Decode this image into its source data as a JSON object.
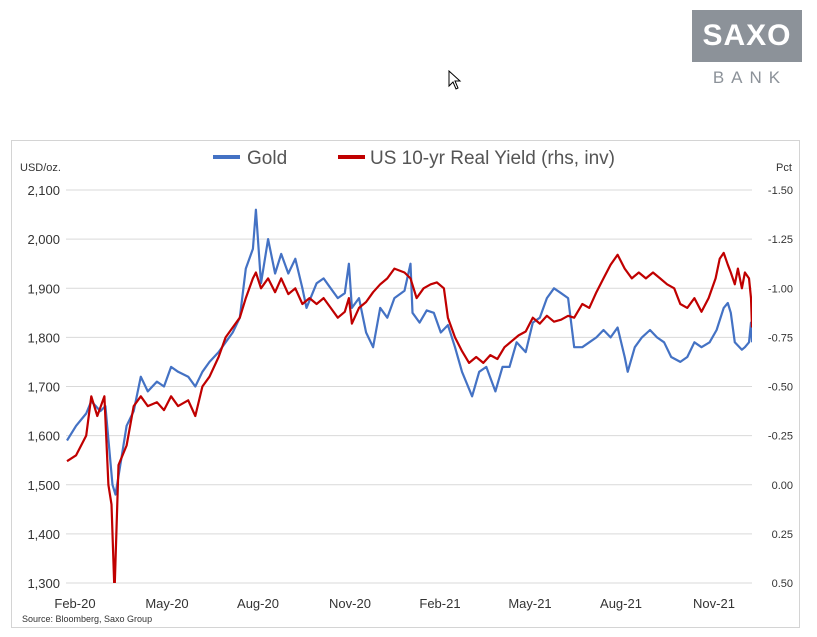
{
  "logo": {
    "top": "SAXO",
    "bottom": "BANK"
  },
  "colors": {
    "gold": "#4472C4",
    "yield": "#C00000",
    "grid": "#d9d9d9",
    "logo": "#8c9299"
  },
  "chart_data": {
    "type": "line",
    "left_axis_unit": "USD/oz.",
    "right_axis_unit": "Pct",
    "source": "Source: Bloomberg, Saxo Group",
    "x_ticks": [
      "Feb-20",
      "May-20",
      "Aug-20",
      "Nov-20",
      "Feb-21",
      "May-21",
      "Aug-21",
      "Nov-21"
    ],
    "y_left_ticks": [
      "2,100",
      "2,000",
      "1,900",
      "1,800",
      "1,700",
      "1,600",
      "1,500",
      "1,400",
      "1,300"
    ],
    "y_right_ticks": [
      "-1.50",
      "-1.25",
      "-1.00",
      "-0.75",
      "-0.50",
      "-0.25",
      "0.00",
      "0.25",
      "0.50"
    ],
    "y_left_range": [
      1300,
      2100
    ],
    "y_right_range": [
      -1.5,
      0.5
    ],
    "y_right_inverted": true,
    "x_range": [
      "2020-01-31",
      "2021-12-10"
    ],
    "series": [
      {
        "name": "Gold",
        "axis": "left",
        "points": [
          [
            "2020-02-01",
            1590
          ],
          [
            "2020-02-10",
            1620
          ],
          [
            "2020-02-20",
            1645
          ],
          [
            "2020-02-25",
            1670
          ],
          [
            "2020-03-05",
            1650
          ],
          [
            "2020-03-10",
            1660
          ],
          [
            "2020-03-17",
            1500
          ],
          [
            "2020-03-20",
            1480
          ],
          [
            "2020-03-24",
            1530
          ],
          [
            "2020-03-31",
            1620
          ],
          [
            "2020-04-07",
            1650
          ],
          [
            "2020-04-14",
            1720
          ],
          [
            "2020-04-21",
            1690
          ],
          [
            "2020-04-30",
            1710
          ],
          [
            "2020-05-07",
            1700
          ],
          [
            "2020-05-14",
            1740
          ],
          [
            "2020-05-21",
            1730
          ],
          [
            "2020-05-31",
            1720
          ],
          [
            "2020-06-07",
            1700
          ],
          [
            "2020-06-14",
            1730
          ],
          [
            "2020-06-21",
            1750
          ],
          [
            "2020-06-30",
            1770
          ],
          [
            "2020-07-07",
            1790
          ],
          [
            "2020-07-14",
            1810
          ],
          [
            "2020-07-21",
            1840
          ],
          [
            "2020-07-27",
            1940
          ],
          [
            "2020-08-03",
            1980
          ],
          [
            "2020-08-06",
            2060
          ],
          [
            "2020-08-11",
            1910
          ],
          [
            "2020-08-18",
            2000
          ],
          [
            "2020-08-25",
            1930
          ],
          [
            "2020-08-31",
            1970
          ],
          [
            "2020-09-07",
            1930
          ],
          [
            "2020-09-14",
            1960
          ],
          [
            "2020-09-21",
            1900
          ],
          [
            "2020-09-25",
            1860
          ],
          [
            "2020-10-05",
            1910
          ],
          [
            "2020-10-12",
            1920
          ],
          [
            "2020-10-19",
            1900
          ],
          [
            "2020-10-26",
            1880
          ],
          [
            "2020-11-02",
            1890
          ],
          [
            "2020-11-06",
            1950
          ],
          [
            "2020-11-09",
            1860
          ],
          [
            "2020-11-16",
            1880
          ],
          [
            "2020-11-23",
            1810
          ],
          [
            "2020-11-30",
            1780
          ],
          [
            "2020-12-07",
            1860
          ],
          [
            "2020-12-14",
            1840
          ],
          [
            "2020-12-21",
            1880
          ],
          [
            "2020-12-31",
            1895
          ],
          [
            "2021-01-06",
            1950
          ],
          [
            "2021-01-08",
            1850
          ],
          [
            "2021-01-15",
            1830
          ],
          [
            "2021-01-22",
            1855
          ],
          [
            "2021-01-29",
            1850
          ],
          [
            "2021-02-05",
            1810
          ],
          [
            "2021-02-12",
            1825
          ],
          [
            "2021-02-19",
            1780
          ],
          [
            "2021-02-26",
            1730
          ],
          [
            "2021-03-08",
            1680
          ],
          [
            "2021-03-15",
            1730
          ],
          [
            "2021-03-22",
            1740
          ],
          [
            "2021-03-31",
            1690
          ],
          [
            "2021-04-07",
            1740
          ],
          [
            "2021-04-14",
            1740
          ],
          [
            "2021-04-21",
            1790
          ],
          [
            "2021-04-30",
            1770
          ],
          [
            "2021-05-07",
            1830
          ],
          [
            "2021-05-14",
            1840
          ],
          [
            "2021-05-21",
            1880
          ],
          [
            "2021-05-28",
            1900
          ],
          [
            "2021-06-04",
            1890
          ],
          [
            "2021-06-11",
            1880
          ],
          [
            "2021-06-17",
            1780
          ],
          [
            "2021-06-25",
            1780
          ],
          [
            "2021-07-02",
            1790
          ],
          [
            "2021-07-09",
            1800
          ],
          [
            "2021-07-16",
            1815
          ],
          [
            "2021-07-23",
            1800
          ],
          [
            "2021-07-30",
            1820
          ],
          [
            "2021-08-06",
            1760
          ],
          [
            "2021-08-09",
            1730
          ],
          [
            "2021-08-16",
            1780
          ],
          [
            "2021-08-23",
            1800
          ],
          [
            "2021-08-31",
            1815
          ],
          [
            "2021-09-07",
            1800
          ],
          [
            "2021-09-14",
            1790
          ],
          [
            "2021-09-21",
            1760
          ],
          [
            "2021-09-30",
            1750
          ],
          [
            "2021-10-07",
            1760
          ],
          [
            "2021-10-14",
            1790
          ],
          [
            "2021-10-21",
            1780
          ],
          [
            "2021-10-29",
            1790
          ],
          [
            "2021-11-05",
            1815
          ],
          [
            "2021-11-12",
            1860
          ],
          [
            "2021-11-16",
            1870
          ],
          [
            "2021-11-19",
            1850
          ],
          [
            "2021-11-23",
            1790
          ],
          [
            "2021-11-30",
            1775
          ],
          [
            "2021-12-03",
            1780
          ],
          [
            "2021-12-07",
            1790
          ],
          [
            "2021-12-09",
            1830
          ],
          [
            "2021-12-10",
            1790
          ]
        ]
      },
      {
        "name": "US 10-yr Real Yield (rhs, inv)",
        "axis": "right",
        "points": [
          [
            "2020-02-01",
            -0.12
          ],
          [
            "2020-02-10",
            -0.15
          ],
          [
            "2020-02-20",
            -0.25
          ],
          [
            "2020-02-25",
            -0.45
          ],
          [
            "2020-03-02",
            -0.35
          ],
          [
            "2020-03-09",
            -0.45
          ],
          [
            "2020-03-13",
            0.0
          ],
          [
            "2020-03-16",
            0.1
          ],
          [
            "2020-03-19",
            0.55
          ],
          [
            "2020-03-23",
            -0.1
          ],
          [
            "2020-03-31",
            -0.2
          ],
          [
            "2020-04-07",
            -0.4
          ],
          [
            "2020-04-14",
            -0.45
          ],
          [
            "2020-04-21",
            -0.4
          ],
          [
            "2020-04-30",
            -0.42
          ],
          [
            "2020-05-07",
            -0.38
          ],
          [
            "2020-05-14",
            -0.45
          ],
          [
            "2020-05-21",
            -0.4
          ],
          [
            "2020-05-31",
            -0.43
          ],
          [
            "2020-06-07",
            -0.35
          ],
          [
            "2020-06-14",
            -0.5
          ],
          [
            "2020-06-21",
            -0.55
          ],
          [
            "2020-06-30",
            -0.65
          ],
          [
            "2020-07-07",
            -0.75
          ],
          [
            "2020-07-14",
            -0.8
          ],
          [
            "2020-07-21",
            -0.85
          ],
          [
            "2020-07-27",
            -0.95
          ],
          [
            "2020-08-03",
            -1.05
          ],
          [
            "2020-08-06",
            -1.08
          ],
          [
            "2020-08-11",
            -1.0
          ],
          [
            "2020-08-18",
            -1.05
          ],
          [
            "2020-08-25",
            -0.98
          ],
          [
            "2020-08-31",
            -1.05
          ],
          [
            "2020-09-07",
            -0.97
          ],
          [
            "2020-09-14",
            -1.0
          ],
          [
            "2020-09-21",
            -0.92
          ],
          [
            "2020-09-28",
            -0.95
          ],
          [
            "2020-10-05",
            -0.92
          ],
          [
            "2020-10-12",
            -0.95
          ],
          [
            "2020-10-19",
            -0.9
          ],
          [
            "2020-10-26",
            -0.85
          ],
          [
            "2020-11-02",
            -0.88
          ],
          [
            "2020-11-06",
            -0.95
          ],
          [
            "2020-11-09",
            -0.82
          ],
          [
            "2020-11-16",
            -0.9
          ],
          [
            "2020-11-23",
            -0.93
          ],
          [
            "2020-11-30",
            -0.98
          ],
          [
            "2020-12-07",
            -1.02
          ],
          [
            "2020-12-14",
            -1.05
          ],
          [
            "2020-12-21",
            -1.1
          ],
          [
            "2020-12-31",
            -1.08
          ],
          [
            "2021-01-06",
            -1.05
          ],
          [
            "2021-01-12",
            -0.95
          ],
          [
            "2021-01-19",
            -1.0
          ],
          [
            "2021-01-26",
            -1.02
          ],
          [
            "2021-02-01",
            -1.03
          ],
          [
            "2021-02-08",
            -1.0
          ],
          [
            "2021-02-12",
            -0.85
          ],
          [
            "2021-02-19",
            -0.75
          ],
          [
            "2021-02-26",
            -0.68
          ],
          [
            "2021-03-05",
            -0.62
          ],
          [
            "2021-03-12",
            -0.65
          ],
          [
            "2021-03-19",
            -0.62
          ],
          [
            "2021-03-26",
            -0.66
          ],
          [
            "2021-04-02",
            -0.64
          ],
          [
            "2021-04-09",
            -0.7
          ],
          [
            "2021-04-16",
            -0.73
          ],
          [
            "2021-04-23",
            -0.76
          ],
          [
            "2021-04-30",
            -0.78
          ],
          [
            "2021-05-07",
            -0.85
          ],
          [
            "2021-05-14",
            -0.82
          ],
          [
            "2021-05-21",
            -0.86
          ],
          [
            "2021-05-28",
            -0.83
          ],
          [
            "2021-06-04",
            -0.84
          ],
          [
            "2021-06-11",
            -0.86
          ],
          [
            "2021-06-17",
            -0.85
          ],
          [
            "2021-06-25",
            -0.92
          ],
          [
            "2021-07-02",
            -0.9
          ],
          [
            "2021-07-09",
            -0.98
          ],
          [
            "2021-07-16",
            -1.05
          ],
          [
            "2021-07-23",
            -1.12
          ],
          [
            "2021-07-30",
            -1.17
          ],
          [
            "2021-08-06",
            -1.1
          ],
          [
            "2021-08-13",
            -1.05
          ],
          [
            "2021-08-20",
            -1.08
          ],
          [
            "2021-08-27",
            -1.05
          ],
          [
            "2021-09-03",
            -1.08
          ],
          [
            "2021-09-10",
            -1.05
          ],
          [
            "2021-09-17",
            -1.02
          ],
          [
            "2021-09-24",
            -1.0
          ],
          [
            "2021-09-30",
            -0.92
          ],
          [
            "2021-10-07",
            -0.9
          ],
          [
            "2021-10-14",
            -0.95
          ],
          [
            "2021-10-21",
            -0.88
          ],
          [
            "2021-10-28",
            -0.95
          ],
          [
            "2021-11-04",
            -1.05
          ],
          [
            "2021-11-08",
            -1.15
          ],
          [
            "2021-11-12",
            -1.18
          ],
          [
            "2021-11-16",
            -1.12
          ],
          [
            "2021-11-19",
            -1.08
          ],
          [
            "2021-11-23",
            -1.02
          ],
          [
            "2021-11-26",
            -1.1
          ],
          [
            "2021-11-30",
            -1.0
          ],
          [
            "2021-12-03",
            -1.08
          ],
          [
            "2021-12-07",
            -1.05
          ],
          [
            "2021-12-09",
            -0.95
          ],
          [
            "2021-12-10",
            -0.8
          ]
        ]
      }
    ]
  }
}
